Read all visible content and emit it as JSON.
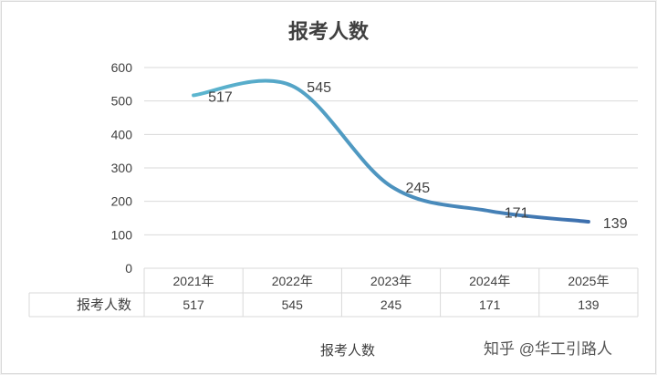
{
  "chart_data": {
    "type": "line",
    "title": "报考人数",
    "categories": [
      "2021年",
      "2022年",
      "2023年",
      "2024年",
      "2025年"
    ],
    "series": [
      {
        "name": "报考人数",
        "values": [
          517,
          545,
          245,
          171,
          139
        ]
      }
    ],
    "data_labels": [
      "517",
      "545",
      "245",
      "171",
      "139"
    ],
    "y_ticks": [
      "0",
      "100",
      "200",
      "300",
      "400",
      "500",
      "600"
    ],
    "ylim": [
      0,
      600
    ],
    "grid": true,
    "smooth": true,
    "data_table": true,
    "legend": "bottom"
  },
  "watermark": "知乎 @华工引路人",
  "colors": {
    "line_start": "#5cb6cf",
    "line_end": "#3d6fae",
    "grid": "#d9d9d9",
    "axis_text": "#404040",
    "title": "#404040"
  }
}
